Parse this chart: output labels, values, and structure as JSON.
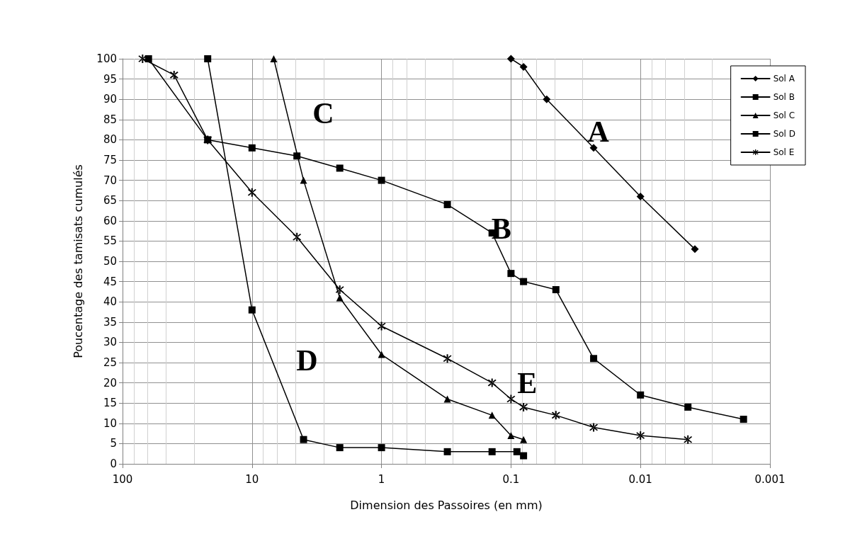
{
  "chart_data": {
    "type": "line",
    "xlabel": "Dimension des Passoires (en mm)",
    "ylabel": "Poucentage des tamisats cumulés",
    "log": "x",
    "xlim": [
      100,
      0.001
    ],
    "xticks": [
      100,
      10,
      1,
      0.1,
      0.01,
      0.001
    ],
    "ylim": [
      0,
      100
    ],
    "yticks": [
      0,
      5,
      10,
      15,
      20,
      25,
      30,
      35,
      40,
      45,
      50,
      55,
      60,
      65,
      70,
      75,
      80,
      85,
      90,
      95,
      100
    ],
    "grid": true,
    "legend": "top right",
    "line_style": "solid",
    "series": [
      {
        "name": "Sol A",
        "color": "#000000",
        "marker": "diamond",
        "x": [
          0.1,
          0.08,
          0.053,
          0.023,
          0.01,
          0.0038
        ],
        "values": [
          100,
          98,
          90,
          78,
          66,
          53
        ]
      },
      {
        "name": "Sol B",
        "color": "#000000",
        "marker": "square",
        "x": [
          63,
          22,
          10,
          4.5,
          2.1,
          1,
          0.31,
          0.14,
          0.1,
          0.08,
          0.045,
          0.023,
          0.01,
          0.0043,
          0.0016
        ],
        "values": [
          100,
          80,
          78,
          76,
          73,
          70,
          64,
          57,
          47,
          45,
          43,
          26,
          17,
          14,
          11
        ]
      },
      {
        "name": "Sol C",
        "color": "#000000",
        "marker": "triangle",
        "x": [
          6.8,
          4,
          2.1,
          1,
          0.31,
          0.14,
          0.1,
          0.08
        ],
        "values": [
          100,
          70,
          41,
          27,
          16,
          12,
          7,
          6
        ]
      },
      {
        "name": "Sol D",
        "color": "#000000",
        "marker": "square",
        "x": [
          22,
          10,
          4,
          2.1,
          1,
          0.31,
          0.14,
          0.09,
          0.08
        ],
        "values": [
          100,
          38,
          6,
          4,
          4,
          3,
          3,
          3,
          2
        ]
      },
      {
        "name": "Sol E",
        "color": "#000000",
        "marker": "cross",
        "x": [
          70,
          40,
          22,
          10,
          4.5,
          2.1,
          1,
          0.31,
          0.14,
          0.1,
          0.08,
          0.045,
          0.023,
          0.01,
          0.0043
        ],
        "values": [
          100,
          96,
          80,
          67,
          56,
          43,
          34,
          26,
          20,
          16,
          14,
          12,
          9,
          7,
          6
        ]
      }
    ],
    "annotations": [
      "A",
      "B",
      "C",
      "D",
      "E"
    ]
  }
}
